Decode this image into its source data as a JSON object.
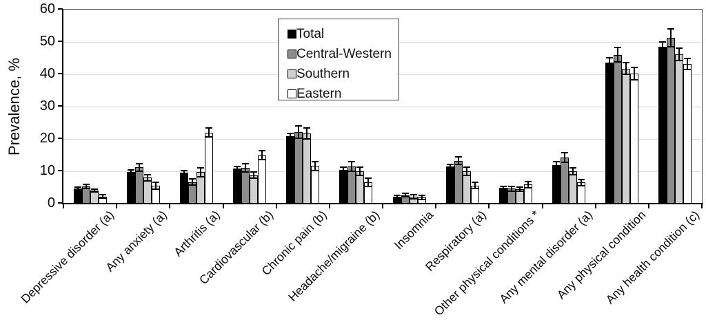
{
  "chart_data": {
    "type": "bar",
    "title": "",
    "ylabel": "Prevalence, %",
    "xlabel": "",
    "ylim": [
      0,
      60
    ],
    "yticks": [
      0,
      10,
      20,
      30,
      40,
      50,
      60
    ],
    "grid": "horizontal",
    "legend_position": "top-center-inside",
    "error_bars": true,
    "categories": [
      "Depressive disorder (a)",
      "Any anxiety (a)",
      "Arthritis (a)",
      "Cardiovascular (b)",
      "Chronic pain (b)",
      "Headache/migraine (b)",
      "Insomnia",
      "Respiratory (a)",
      "Other physical conditions *",
      "Any mental disorder (a)",
      "Any physical condition",
      "Any health condition (c)"
    ],
    "series": [
      {
        "name": "Total",
        "color": "#000000",
        "values": [
          4.7,
          9.8,
          9.5,
          10.8,
          20.8,
          10.4,
          2.2,
          11.4,
          5.0,
          12.0,
          43.7,
          48.5
        ],
        "errors": [
          0.4,
          0.7,
          0.7,
          0.7,
          0.8,
          0.8,
          0.3,
          0.8,
          0.4,
          0.9,
          1.5,
          1.4
        ]
      },
      {
        "name": "Central-Western",
        "color": "#8c8c8c",
        "values": [
          5.3,
          11.2,
          6.7,
          11.0,
          22.2,
          11.5,
          2.6,
          13.3,
          4.6,
          14.3,
          46.0,
          51.3
        ],
        "errors": [
          0.7,
          1.2,
          0.9,
          1.3,
          1.9,
          1.5,
          0.5,
          1.2,
          0.7,
          1.5,
          2.2,
          2.7
        ]
      },
      {
        "name": "Southern",
        "color": "#d0d0d0",
        "values": [
          4.1,
          8.0,
          9.7,
          8.8,
          21.7,
          10.0,
          2.1,
          10.0,
          4.5,
          10.0,
          41.8,
          46.2
        ],
        "errors": [
          0.4,
          0.9,
          1.4,
          0.9,
          1.7,
          1.2,
          0.6,
          1.3,
          0.7,
          1.1,
          1.9,
          1.9
        ]
      },
      {
        "name": "Eastern",
        "color": "#ffffff",
        "values": [
          2.2,
          5.5,
          22.0,
          15.0,
          11.6,
          6.6,
          1.9,
          5.6,
          5.9,
          6.5,
          40.2,
          43.2
        ],
        "errors": [
          0.5,
          1.1,
          1.4,
          1.4,
          1.4,
          1.2,
          0.6,
          1.0,
          0.9,
          1.0,
          1.9,
          1.8
        ]
      }
    ]
  }
}
